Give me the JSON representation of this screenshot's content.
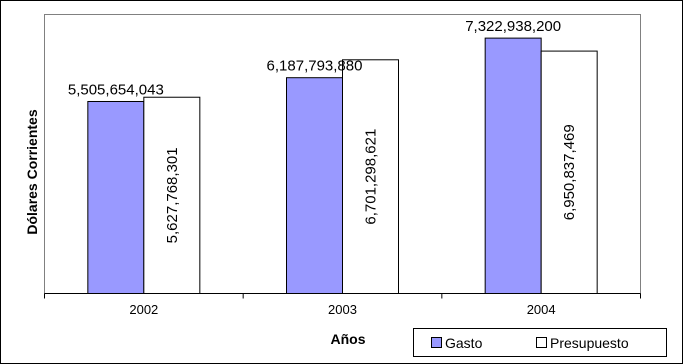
{
  "chart_data": {
    "type": "bar",
    "title": "",
    "xlabel": "Años",
    "ylabel": "Dólares Corrientes",
    "categories": [
      "2002",
      "2003",
      "2004"
    ],
    "series": [
      {
        "name": "Gasto",
        "values": [
          5505654043,
          6187793880,
          7322938200
        ],
        "labels": [
          "5,505,654,043",
          "6,187,793,880",
          "7,322,938,200"
        ],
        "color": "#9999ff",
        "label_orientation": "horizontal"
      },
      {
        "name": "Presupuesto",
        "values": [
          5627768301,
          6701298621,
          6950837469
        ],
        "labels": [
          "5,627,768,301",
          "6,701,298,621",
          "6,950,837,469"
        ],
        "color": "#ffffff",
        "label_orientation": "vertical"
      }
    ],
    "ylim": [
      0,
      8000000000
    ],
    "grid": false,
    "legend": "bottom-right"
  }
}
